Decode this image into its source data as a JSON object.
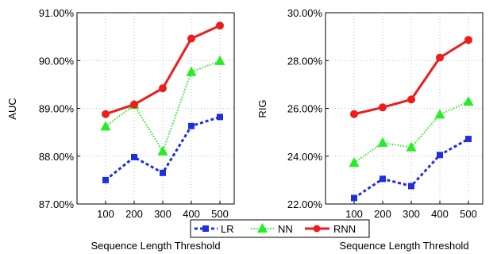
{
  "chart_data": [
    {
      "type": "line",
      "xlabel": "Sequence Length Threshold",
      "ylabel": "AUC",
      "x": [
        100,
        200,
        300,
        400,
        500
      ],
      "xlim": [
        0,
        550
      ],
      "ylim": [
        87.0,
        91.0
      ],
      "yticks": [
        "87.00%",
        "88.00%",
        "89.00%",
        "90.00%",
        "91.00%"
      ],
      "xticks": [
        "100",
        "200",
        "300",
        "400",
        "500"
      ],
      "grid": true,
      "series": [
        {
          "name": "LR",
          "values": [
            87.5,
            87.98,
            87.65,
            88.63,
            88.82
          ]
        },
        {
          "name": "NN",
          "values": [
            88.62,
            89.07,
            88.1,
            89.76,
            89.99
          ]
        },
        {
          "name": "RNN",
          "values": [
            88.88,
            89.08,
            89.42,
            90.46,
            90.73
          ]
        }
      ]
    },
    {
      "type": "line",
      "xlabel": "Sequence Length Threshold",
      "ylabel": "RIG",
      "x": [
        100,
        200,
        300,
        400,
        500
      ],
      "xlim": [
        0,
        550
      ],
      "ylim": [
        22.0,
        30.0
      ],
      "yticks": [
        "22.00%",
        "24.00%",
        "26.00%",
        "28.00%",
        "30.00%"
      ],
      "xticks": [
        "100",
        "200",
        "300",
        "400",
        "500"
      ],
      "grid": true,
      "series": [
        {
          "name": "LR",
          "values": [
            22.25,
            23.05,
            22.75,
            24.05,
            24.72
          ]
        },
        {
          "name": "NN",
          "values": [
            23.72,
            24.56,
            24.37,
            25.74,
            26.28
          ]
        },
        {
          "name": "RNN",
          "values": [
            25.76,
            26.04,
            26.37,
            28.12,
            28.86
          ]
        }
      ]
    }
  ],
  "legend": {
    "placement": "bottom-center",
    "items": [
      "LR",
      "NN",
      "RNN"
    ]
  },
  "colors": {
    "LR": "#1f2fe0",
    "NN": "#22ee22",
    "RNN": "#ee1c1c",
    "grid": "#bdbdbd",
    "axis": "#000000"
  }
}
